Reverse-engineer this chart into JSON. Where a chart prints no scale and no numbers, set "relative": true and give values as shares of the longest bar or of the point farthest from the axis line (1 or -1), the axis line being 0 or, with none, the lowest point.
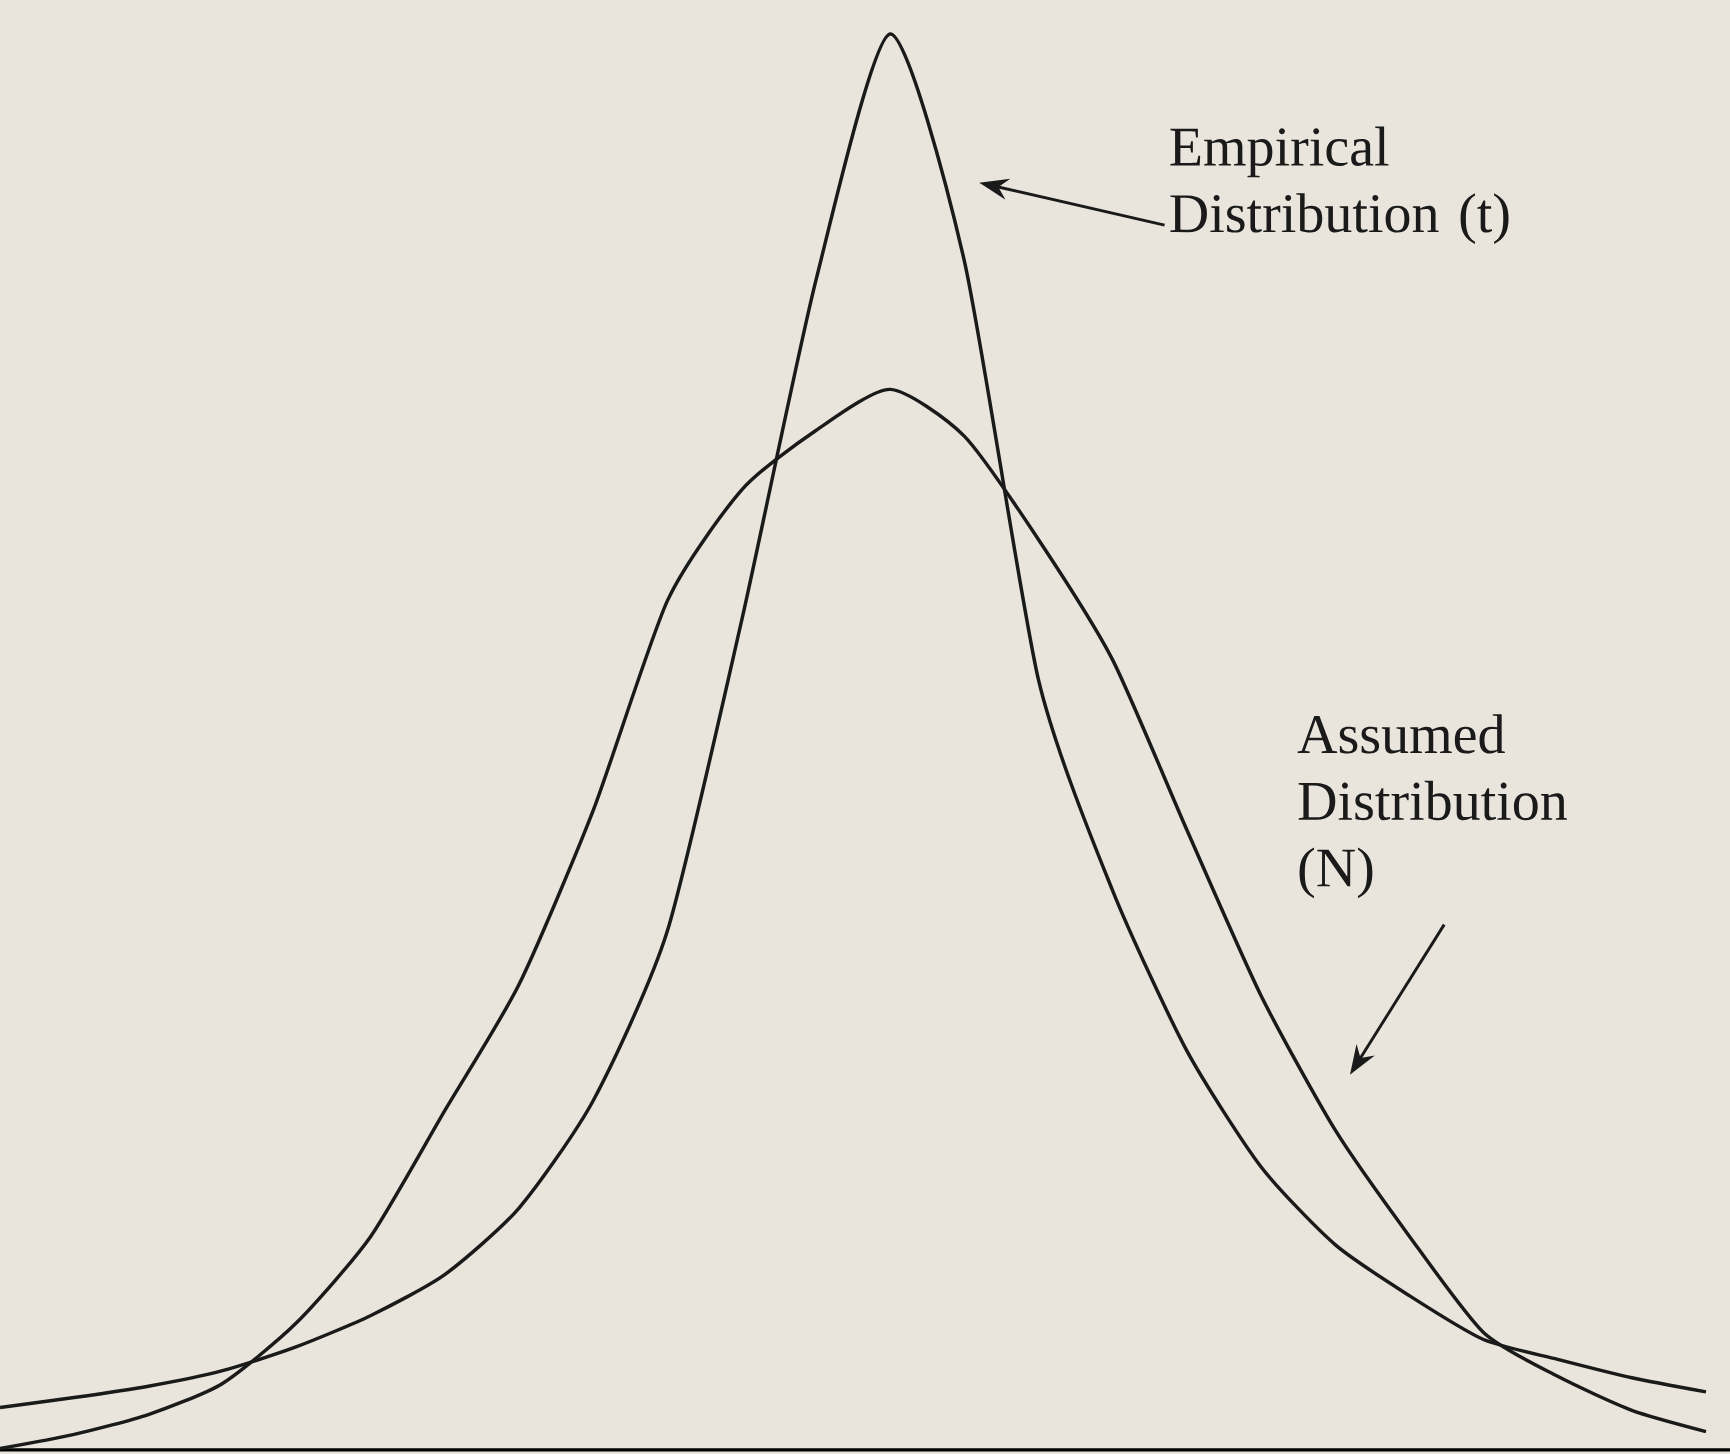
{
  "chart_data": {
    "type": "line",
    "relative": true,
    "categories": [
      null,
      null,
      null,
      null,
      null,
      null,
      null,
      null,
      null,
      null,
      null,
      null,
      null,
      null,
      null,
      null,
      null,
      null,
      null,
      null,
      null,
      null,
      null,
      null
    ],
    "series": [
      {
        "name": "Empirical Distribution (t)",
        "color": "#1a1a1a",
        "values": [
          0.03,
          0.037,
          0.045,
          0.056,
          0.073,
          0.095,
          0.124,
          0.171,
          0.247,
          0.367,
          0.586,
          0.826,
          1,
          0.84,
          0.544,
          0.395,
          0.282,
          0.2,
          0.145,
          0.109,
          0.078,
          0.064,
          0.051,
          0.041
        ]
      },
      {
        "name": "Assumed Distribution (N)",
        "color": "#1a1a1a",
        "values": [
          0.001,
          0.011,
          0.025,
          0.047,
          0.09,
          0.151,
          0.24,
          0.329,
          0.452,
          0.6,
          0.678,
          0.72,
          0.749,
          0.716,
          0.643,
          0.558,
          0.438,
          0.321,
          0.226,
          0.151,
          0.083,
          0.052,
          0.028,
          0.013
        ]
      }
    ]
  }
}
